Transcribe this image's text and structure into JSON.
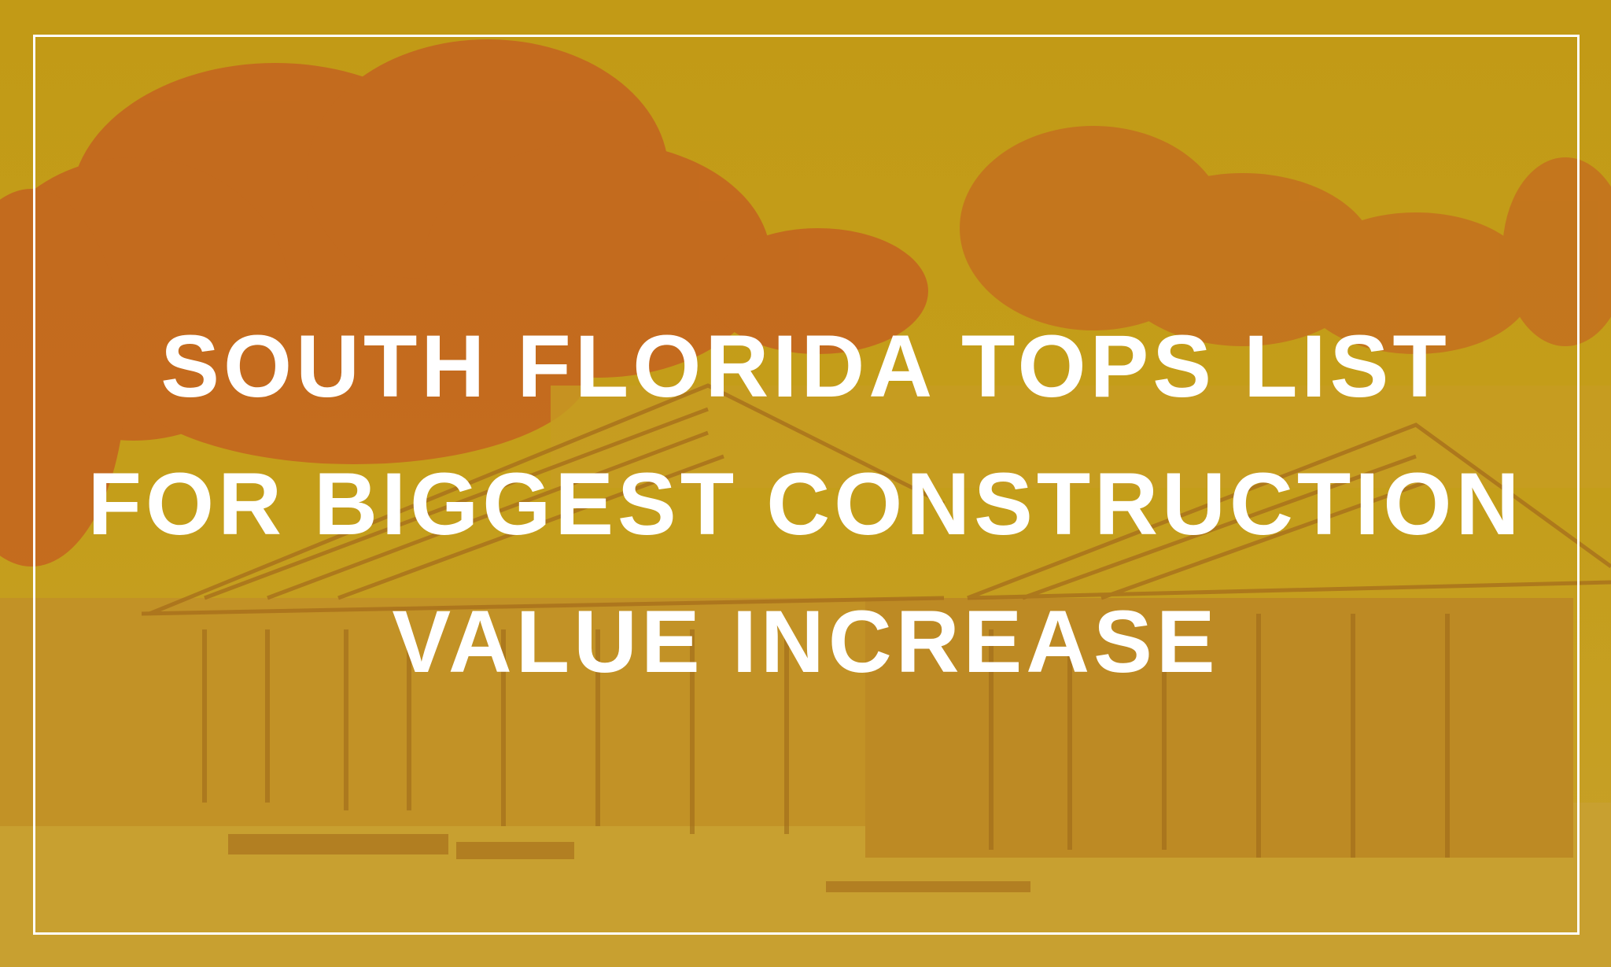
{
  "headline": {
    "lines": [
      "SOUTH FLORIDA TOPS LIST",
      "FOR BIGGEST CONSTRUCTION",
      "VALUE INCREASE"
    ]
  },
  "colors": {
    "tint": "#c09a18",
    "trees": "#c4641f",
    "text": "#ffffff",
    "frame": "#ffffff"
  },
  "background_photo": "construction-site-house-framing-trees"
}
